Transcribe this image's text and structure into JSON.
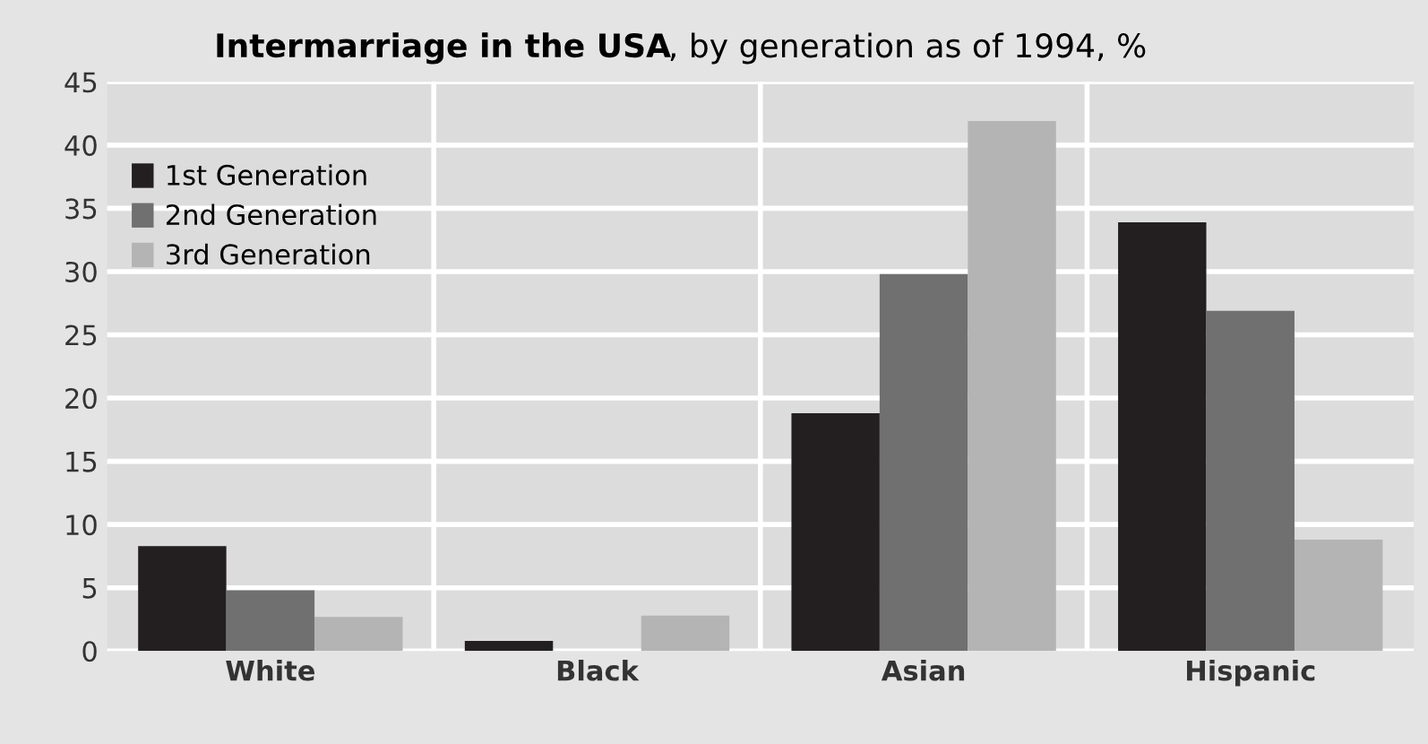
{
  "chart_data": {
    "type": "bar",
    "title": "Intermarriage in the USA",
    "subtitle": ", by generation as of 1994, %",
    "categories": [
      "White",
      "Black",
      "Asian",
      "Hispanic"
    ],
    "series": [
      {
        "name": "1st Generation",
        "color": "#231f20",
        "values": [
          8.3,
          0.8,
          18.8,
          33.9
        ]
      },
      {
        "name": "2nd Generation",
        "color": "#707070",
        "values": [
          4.8,
          0,
          29.8,
          26.9
        ]
      },
      {
        "name": "3rd Generation",
        "color": "#b4b4b4",
        "values": [
          2.7,
          2.8,
          41.9,
          8.8
        ]
      }
    ],
    "ylim": [
      0,
      45
    ],
    "yticks": [
      0,
      5,
      10,
      15,
      20,
      25,
      30,
      35,
      40,
      45
    ],
    "grid": true,
    "legend": "top left"
  }
}
